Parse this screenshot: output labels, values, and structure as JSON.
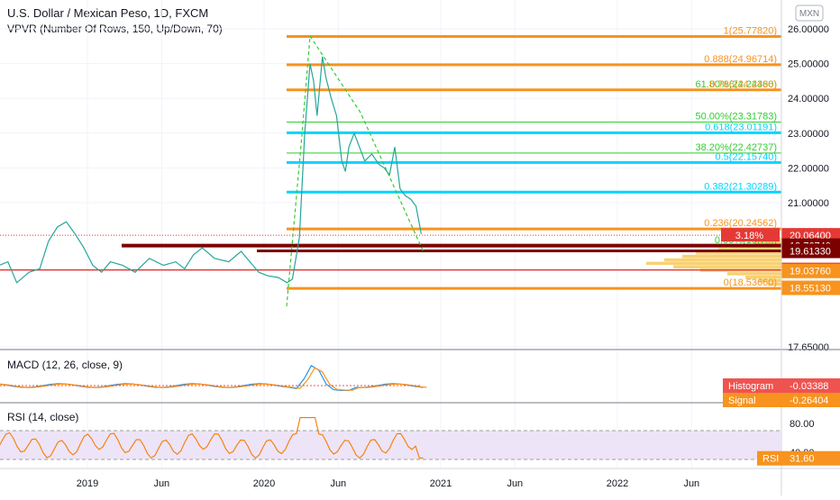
{
  "header": {
    "symbol_title": "U.S. Dollar / Mexican Peso, 1D, FXCM",
    "vpvr_label": "VPVR (Number Of Rows, 150, Up/Down, 70)",
    "currency_badge": "MXN"
  },
  "chart_data": [
    {
      "type": "line",
      "name": "price-pane",
      "y_ticks": [
        "26.00000",
        "25.00000",
        "24.00000",
        "23.00000",
        "22.00000",
        "21.00000",
        "17.65000"
      ],
      "ylim": [
        17.65,
        26.2
      ],
      "series_points": [
        [
          2018.37,
          19.0
        ],
        [
          2018.45,
          18.9
        ],
        [
          2018.5,
          19.2
        ],
        [
          2018.55,
          19.3
        ],
        [
          2018.6,
          18.7
        ],
        [
          2018.67,
          19.0
        ],
        [
          2018.73,
          19.1
        ],
        [
          2018.78,
          19.9
        ],
        [
          2018.83,
          20.3
        ],
        [
          2018.88,
          20.45
        ],
        [
          2018.93,
          20.1
        ],
        [
          2018.98,
          19.7
        ],
        [
          2019.03,
          19.2
        ],
        [
          2019.08,
          19.0
        ],
        [
          2019.13,
          19.3
        ],
        [
          2019.2,
          19.2
        ],
        [
          2019.27,
          19.0
        ],
        [
          2019.35,
          19.4
        ],
        [
          2019.43,
          19.2
        ],
        [
          2019.5,
          19.3
        ],
        [
          2019.55,
          19.1
        ],
        [
          2019.6,
          19.5
        ],
        [
          2019.65,
          19.7
        ],
        [
          2019.72,
          19.4
        ],
        [
          2019.8,
          19.3
        ],
        [
          2019.87,
          19.6
        ],
        [
          2019.92,
          19.3
        ],
        [
          2019.97,
          19.0
        ],
        [
          2020.02,
          18.9
        ],
        [
          2020.08,
          18.85
        ],
        [
          2020.13,
          18.7
        ],
        [
          2020.16,
          18.8
        ],
        [
          2020.2,
          20.0
        ],
        [
          2020.23,
          23.0
        ],
        [
          2020.26,
          25.0
        ],
        [
          2020.28,
          24.5
        ],
        [
          2020.3,
          23.5
        ],
        [
          2020.33,
          25.2
        ],
        [
          2020.35,
          24.6
        ],
        [
          2020.38,
          24.0
        ],
        [
          2020.41,
          23.5
        ],
        [
          2020.44,
          22.2
        ],
        [
          2020.46,
          21.9
        ],
        [
          2020.48,
          22.6
        ],
        [
          2020.51,
          23.0
        ],
        [
          2020.54,
          22.6
        ],
        [
          2020.57,
          22.2
        ],
        [
          2020.61,
          22.4
        ],
        [
          2020.65,
          22.1
        ],
        [
          2020.68,
          22.0
        ],
        [
          2020.71,
          21.8
        ],
        [
          2020.74,
          22.6
        ],
        [
          2020.77,
          21.4
        ],
        [
          2020.8,
          21.2
        ],
        [
          2020.83,
          21.1
        ],
        [
          2020.86,
          20.9
        ],
        [
          2020.89,
          20.1
        ]
      ],
      "series_ohlc": {
        "high": 26.2,
        "low": 18.5
      },
      "fib_levels": [
        {
          "label": "1(25.77820)",
          "value": 25.7782,
          "color": "#f7931e"
        },
        {
          "label": "0.888(24.96714)",
          "value": 24.96714,
          "color": "#f7931e"
        },
        {
          "label": "61.80%(24.24360)",
          "value": 24.2436,
          "color": "#33cc33"
        },
        {
          "label": "0.786(24.2436)",
          "value": 24.2436,
          "color": "#f7931e"
        },
        {
          "label": "50.00%(23.31783)",
          "value": 23.31783,
          "color": "#33cc33"
        },
        {
          "label": "0.618(23.01191)",
          "value": 23.01191,
          "color": "#00d5ff"
        },
        {
          "label": "38.20%(22.42737)",
          "value": 22.42737,
          "color": "#33cc33"
        },
        {
          "label": "0.5(22.15740)",
          "value": 22.1574,
          "color": "#00d5ff"
        },
        {
          "label": "0.382(21.30289)",
          "value": 21.30289,
          "color": "#00d5ff"
        },
        {
          "label": "0.236(20.24562)",
          "value": 20.24562,
          "color": "#f7931e"
        },
        {
          "label": "0.00%(19.7...)",
          "value": 19.76,
          "color": "#33cc33"
        },
        {
          "label": "0(18.53660)",
          "value": 18.5366,
          "color": "#f7931e"
        }
      ],
      "price_tags": [
        {
          "label": "3.18%",
          "value": 20.064,
          "color": "#e53935"
        },
        {
          "label": "20.06400",
          "value": 20.064,
          "color": "#e53935"
        },
        {
          "label": "19.76740",
          "value": 19.7674,
          "color": "#7b0000"
        },
        {
          "label": "19.61330",
          "value": 19.6133,
          "color": "#7b0000"
        },
        {
          "label": "19.06832",
          "value": 19.06832,
          "color": "#e53935"
        },
        {
          "label": "19.03760",
          "value": 19.0376,
          "color": "#f7931e"
        },
        {
          "label": "18.55130",
          "value": 18.5513,
          "color": "#f7931e"
        }
      ]
    },
    {
      "type": "line",
      "name": "macd-pane",
      "title": "MACD (12, 26, close, 9)",
      "tags": [
        {
          "label": "Histogram",
          "value": "-0.03388",
          "color": "#ef5350"
        },
        {
          "label": "Signal",
          "value": "-0.26404",
          "color": "#f7931e"
        }
      ]
    },
    {
      "type": "line",
      "name": "rsi-pane",
      "title": "RSI (14, close)",
      "y_ticks": [
        "80.00",
        "40.00"
      ],
      "ylim": [
        20,
        90
      ],
      "tag": {
        "label": "RSI",
        "value": "31.60",
        "color": "#f7931e"
      }
    }
  ],
  "time_axis": {
    "labels": [
      {
        "text": "2019",
        "x": 2019.0
      },
      {
        "text": "Jun",
        "x": 2019.42
      },
      {
        "text": "2020",
        "x": 2020.0
      },
      {
        "text": "Jun",
        "x": 2020.42
      },
      {
        "text": "2021",
        "x": 2021.0
      },
      {
        "text": "Jun",
        "x": 2021.42
      },
      {
        "text": "2022",
        "x": 2022.0
      },
      {
        "text": "Jun",
        "x": 2022.42
      }
    ]
  }
}
